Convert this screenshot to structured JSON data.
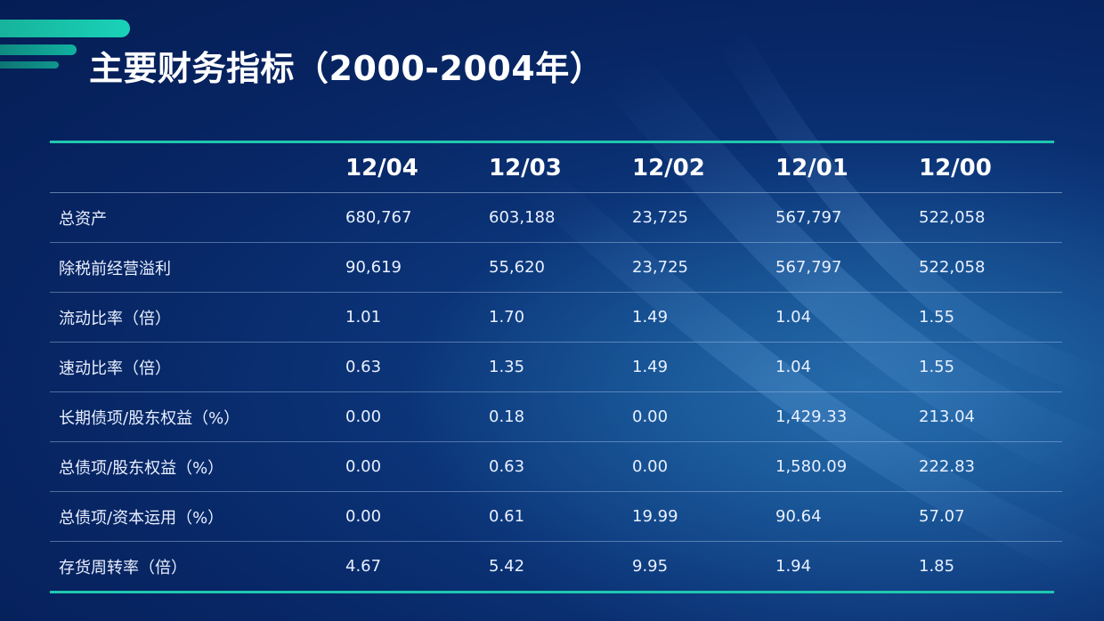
{
  "title": "主要财务指标（2000-2004年）",
  "colors": {
    "accent": "#1fc7b0",
    "background": "#082766"
  },
  "table": {
    "headers": [
      "",
      "12/04",
      "12/03",
      "12/02",
      "12/01",
      "12/00"
    ],
    "rows": [
      {
        "label": "总资产",
        "values": [
          "680,767",
          "603,188",
          "23,725",
          "567,797",
          "522,058"
        ]
      },
      {
        "label": "除税前经营溢利",
        "values": [
          "90,619",
          "55,620",
          "23,725",
          "567,797",
          "522,058"
        ]
      },
      {
        "label": "流动比率（倍）",
        "values": [
          "1.01",
          "1.70",
          "1.49",
          "1.04",
          "1.55"
        ]
      },
      {
        "label": "速动比率（倍）",
        "values": [
          "0.63",
          "1.35",
          "1.49",
          "1.04",
          "1.55"
        ]
      },
      {
        "label": "长期债项/股东权益（%）",
        "values": [
          "0.00",
          "0.18",
          "0.00",
          "1,429.33",
          "213.04"
        ]
      },
      {
        "label": "总债项/股东权益（%）",
        "values": [
          "0.00",
          "0.63",
          "0.00",
          "1,580.09",
          "222.83"
        ]
      },
      {
        "label": "总债项/资本运用（%）",
        "values": [
          "0.00",
          "0.61",
          "19.99",
          "90.64",
          "57.07"
        ]
      },
      {
        "label": "存货周转率（倍）",
        "values": [
          "4.67",
          "5.42",
          "9.95",
          "1.94",
          "1.85"
        ]
      }
    ]
  }
}
